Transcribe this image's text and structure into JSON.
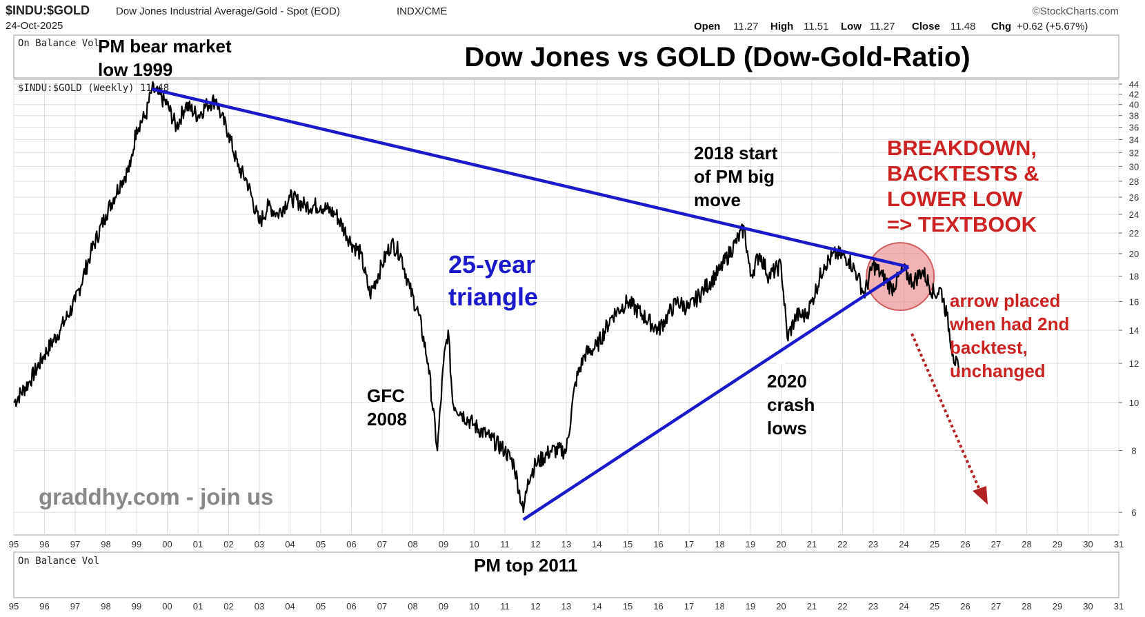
{
  "header": {
    "symbol": "$INDU:$GOLD",
    "description": "Dow Jones Industrial Average/Gold - Spot (EOD)",
    "exchange": "INDX/CME",
    "source": "©StockCharts.com",
    "date": "24-Oct-2025",
    "quote": {
      "open_label": "Open",
      "open": "11.27",
      "high_label": "High",
      "high": "11.51",
      "low_label": "Low",
      "low": "11.27",
      "close_label": "Close",
      "close": "11.48",
      "chg_label": "Chg",
      "chg": "+0.62 (+5.67%)"
    }
  },
  "panels": {
    "obv_top_label": "On Balance Vol",
    "price_label": "$INDU:$GOLD (Weekly) 11.48",
    "obv_bottom_label": "On Balance Vol"
  },
  "annotations": {
    "title": "Dow Jones vs GOLD (Dow-Gold-Ratio)",
    "pm_low_line1": "PM bear market",
    "pm_low_line2": "low 1999",
    "triangle_line1": "25-year",
    "triangle_line2": "triangle",
    "gfc_line1": "GFC",
    "gfc_line2": "2008",
    "start2018_line1": "2018 start",
    "start2018_line2": "of PM big",
    "start2018_line3": "move",
    "crash2020_line1": "2020",
    "crash2020_line2": "crash",
    "crash2020_line3": "lows",
    "breakdown_line1": "BREAKDOWN,",
    "breakdown_line2": "BACKTESTS &",
    "breakdown_line3": "LOWER LOW",
    "breakdown_line4": "=> TEXTBOOK",
    "arrow_line1": "arrow placed",
    "arrow_line2": "when had 2nd",
    "arrow_line3": "backtest,",
    "arrow_line4": "unchanged",
    "pm_top": "PM top 2011",
    "watermark": "graddhy.com - join us"
  },
  "colors": {
    "price_line": "#000000",
    "trendline": "#1a1acc",
    "triangle_text": "#1a1acc",
    "breakdown_text": "#cc2222",
    "arrow": "#b22222",
    "circle_fill": "#e88080",
    "grid": "#dddddd",
    "watermark": "#888888"
  },
  "chart_data": {
    "type": "line",
    "series": [
      {
        "name": "$INDU:$GOLD (Weekly)",
        "x": [
          1995.0,
          1995.5,
          1996.0,
          1996.5,
          1997.0,
          1997.5,
          1998.0,
          1998.5,
          1998.8,
          1999.0,
          1999.3,
          1999.5,
          1999.7,
          2000.0,
          2000.3,
          2000.6,
          2001.0,
          2001.3,
          2001.6,
          2001.75,
          2002.0,
          2002.3,
          2002.6,
          2003.0,
          2003.3,
          2003.6,
          2004.0,
          2004.5,
          2005.0,
          2005.5,
          2006.0,
          2006.3,
          2006.6,
          2007.0,
          2007.3,
          2007.6,
          2007.9,
          2008.2,
          2008.5,
          2008.8,
          2009.0,
          2009.15,
          2009.3,
          2009.6,
          2010.0,
          2010.5,
          2011.0,
          2011.3,
          2011.6,
          2011.75,
          2012.0,
          2012.5,
          2013.0,
          2013.3,
          2013.6,
          2014.0,
          2014.5,
          2015.0,
          2015.5,
          2016.0,
          2016.3,
          2016.6,
          2017.0,
          2017.5,
          2018.0,
          2018.5,
          2018.8,
          2019.0,
          2019.3,
          2019.6,
          2020.0,
          2020.2,
          2020.5,
          2020.8,
          2021.0,
          2021.4,
          2021.8,
          2022.2,
          2022.5,
          2022.7,
          2023.0,
          2023.3,
          2023.6,
          2024.0,
          2024.3,
          2024.6,
          2025.0,
          2025.2,
          2025.4,
          2025.6,
          2025.8
        ],
        "y": [
          10.0,
          11.0,
          12.5,
          14.0,
          16.0,
          20.0,
          24.0,
          28.0,
          30.0,
          36.0,
          38.0,
          43.0,
          42.0,
          40.0,
          36.0,
          40.0,
          38.0,
          40.0,
          41.0,
          38.0,
          35.0,
          30.0,
          28.0,
          23.0,
          25.0,
          24.0,
          26.0,
          25.0,
          25.0,
          24.0,
          21.0,
          20.0,
          16.5,
          19.0,
          21.0,
          20.0,
          17.0,
          15.0,
          12.0,
          8.0,
          12.0,
          14.0,
          10.0,
          9.5,
          9.0,
          8.5,
          8.0,
          7.5,
          6.0,
          7.0,
          7.5,
          8.0,
          8.0,
          11.0,
          12.5,
          13.0,
          15.0,
          16.0,
          15.0,
          14.0,
          15.0,
          16.0,
          15.5,
          17.0,
          18.5,
          21.0,
          22.5,
          18.0,
          20.0,
          18.0,
          19.0,
          13.5,
          15.0,
          15.0,
          16.0,
          19.0,
          20.0,
          19.5,
          18.0,
          16.5,
          19.0,
          18.0,
          17.0,
          18.5,
          17.5,
          18.5,
          16.5,
          17.0,
          15.0,
          12.5,
          11.48
        ]
      }
    ],
    "x_ticks": [
      "95",
      "96",
      "97",
      "98",
      "99",
      "00",
      "01",
      "02",
      "03",
      "04",
      "05",
      "06",
      "07",
      "08",
      "09",
      "10",
      "11",
      "12",
      "13",
      "14",
      "15",
      "16",
      "17",
      "18",
      "19",
      "20",
      "21",
      "22",
      "23",
      "24",
      "25",
      "26",
      "27",
      "28",
      "29",
      "30",
      "31"
    ],
    "xlim": [
      1995,
      2031
    ],
    "y_ticks": [
      6,
      8,
      10,
      12,
      14,
      16,
      18,
      20,
      22,
      24,
      26,
      28,
      30,
      32,
      34,
      36,
      38,
      40,
      42,
      44
    ],
    "ylim": [
      5.4,
      45
    ],
    "y_scale": "log",
    "grid": true,
    "trendlines": [
      {
        "from": [
          1999.5,
          43.0
        ],
        "to": [
          2024.15,
          18.8
        ]
      },
      {
        "from": [
          2011.6,
          5.8
        ],
        "to": [
          2024.15,
          18.8
        ]
      }
    ]
  }
}
